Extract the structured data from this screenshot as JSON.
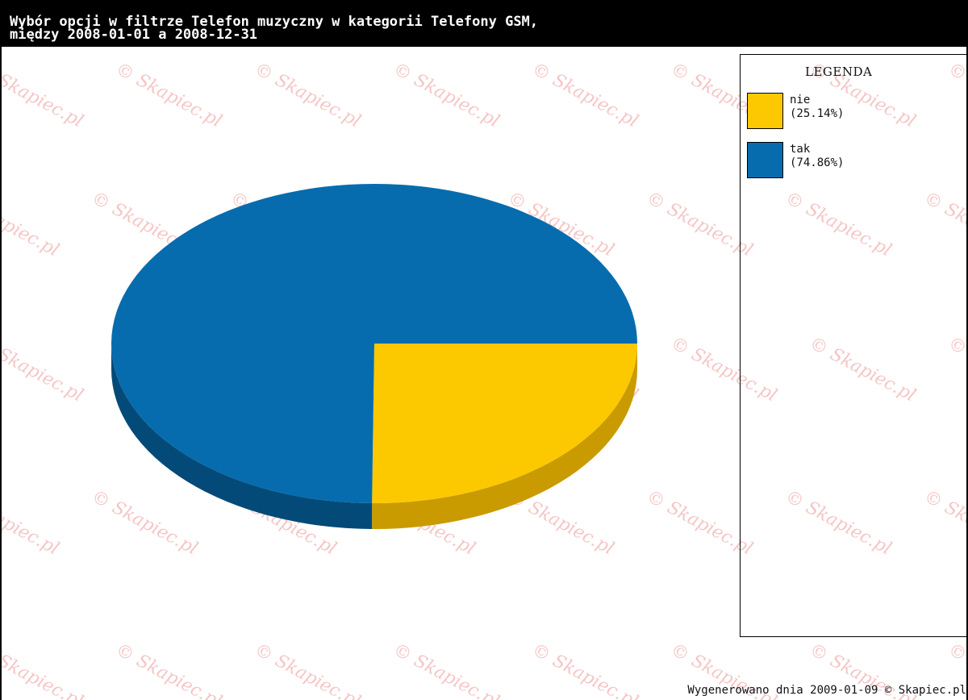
{
  "header": {
    "title_line1": "Wybór opcji w filtrze Telefon muzyczny w kategorii Telefony GSM,",
    "title_line2": "między 2008-01-01 a 2008-12-31"
  },
  "chart_data": {
    "type": "pie",
    "title": "Wybór opcji w filtrze Telefon muzyczny w kategorii Telefony GSM, między 2008-01-01 a 2008-12-31",
    "three_d": true,
    "slices": [
      {
        "label": "nie",
        "percent": 25.14,
        "percent_text": "(25.14%)",
        "color": "#fcc800",
        "side_color": "#c99b00"
      },
      {
        "label": "tak",
        "percent": 74.86,
        "percent_text": "(74.86%)",
        "color": "#066cae",
        "side_color": "#044a78"
      }
    ]
  },
  "legend": {
    "title": "LEGENDA",
    "placement": "right"
  },
  "watermark": "© Skapiec.pl",
  "footer": "Wygenerowano dnia 2009-01-09 © Skapiec.pl"
}
